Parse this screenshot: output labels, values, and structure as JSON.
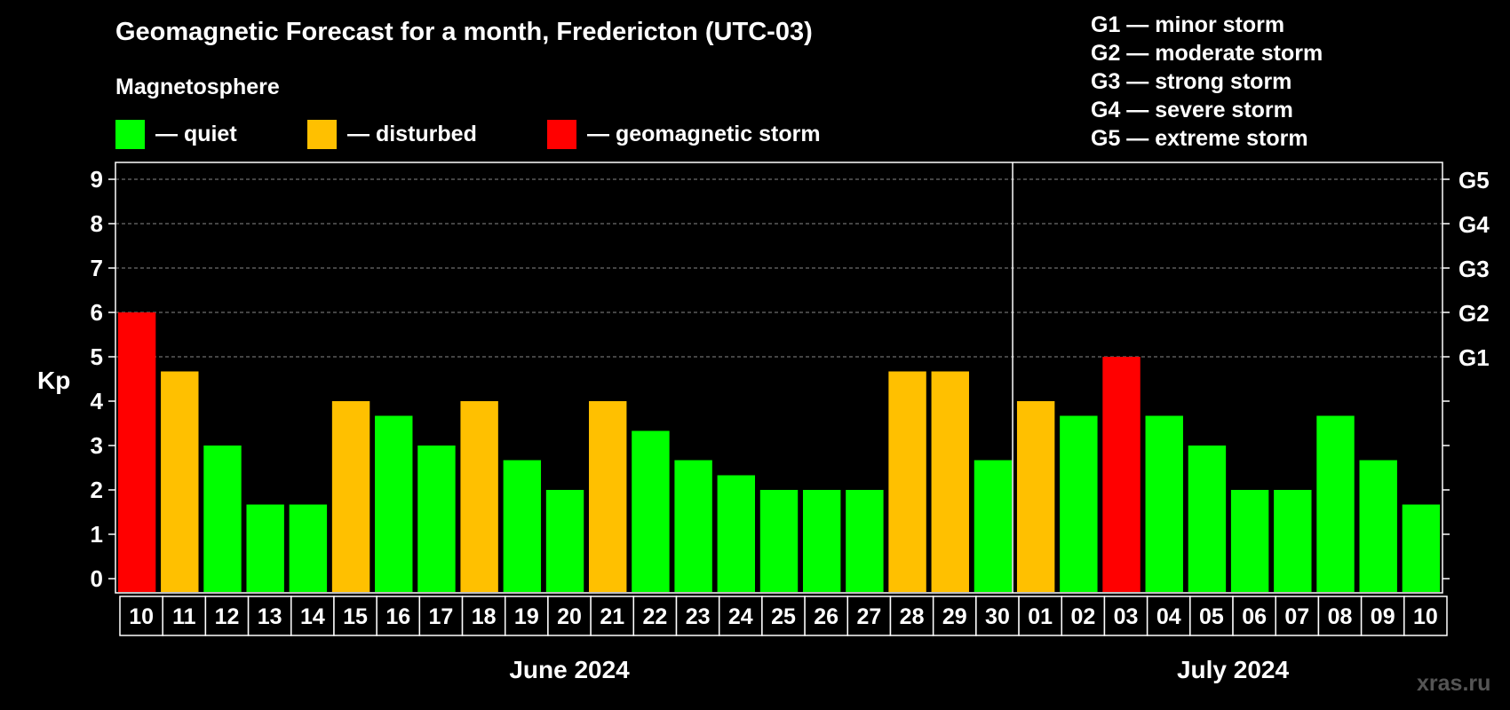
{
  "title": "Geomagnetic Forecast for a month, Fredericton (UTC-03)",
  "subtitle": "Magnetosphere",
  "legend": [
    {
      "label": "— quiet",
      "color": "#00ff00"
    },
    {
      "label": "— disturbed",
      "color": "#ffc000"
    },
    {
      "label": "— geomagnetic storm",
      "color": "#ff0000"
    }
  ],
  "storm_levels": [
    "G1 — minor storm",
    "G2 — moderate storm",
    "G3 — strong storm",
    "G4 — severe storm",
    "G5 — extreme storm"
  ],
  "watermark": "xras.ru",
  "chart_data": {
    "type": "bar",
    "ylabel": "Kp",
    "ylim": [
      0,
      9
    ],
    "yticks": [
      "0",
      "1",
      "2",
      "3",
      "4",
      "5",
      "6",
      "7",
      "8",
      "9"
    ],
    "right_axis_labels": [
      {
        "kp": 5,
        "label": "G1"
      },
      {
        "kp": 6,
        "label": "G2"
      },
      {
        "kp": 7,
        "label": "G3"
      },
      {
        "kp": 8,
        "label": "G4"
      },
      {
        "kp": 9,
        "label": "G5"
      }
    ],
    "grid": true,
    "categories": [
      "10",
      "11",
      "12",
      "13",
      "14",
      "15",
      "16",
      "17",
      "18",
      "19",
      "20",
      "21",
      "22",
      "23",
      "24",
      "25",
      "26",
      "27",
      "28",
      "29",
      "30",
      "01",
      "02",
      "03",
      "04",
      "05",
      "06",
      "07",
      "08",
      "09",
      "10"
    ],
    "values": [
      6,
      4.67,
      3,
      1.67,
      1.67,
      4,
      3.67,
      3,
      4,
      2.67,
      2,
      4,
      3.33,
      2.67,
      2.33,
      2,
      2,
      2,
      4.67,
      4.67,
      2.67,
      4,
      3.67,
      5,
      3.67,
      3,
      2,
      2,
      3.67,
      2.67,
      1.67
    ],
    "status": [
      "storm",
      "disturbed",
      "quiet",
      "quiet",
      "quiet",
      "disturbed",
      "quiet",
      "quiet",
      "disturbed",
      "quiet",
      "quiet",
      "disturbed",
      "quiet",
      "quiet",
      "quiet",
      "quiet",
      "quiet",
      "quiet",
      "disturbed",
      "disturbed",
      "quiet",
      "disturbed",
      "quiet",
      "storm",
      "quiet",
      "quiet",
      "quiet",
      "quiet",
      "quiet",
      "quiet",
      "quiet"
    ],
    "status_colors": {
      "quiet": "#00ff00",
      "disturbed": "#ffc000",
      "storm": "#ff0000"
    },
    "months": [
      {
        "label": "June 2024",
        "count": 21
      },
      {
        "label": "July 2024",
        "count": 10
      }
    ]
  }
}
